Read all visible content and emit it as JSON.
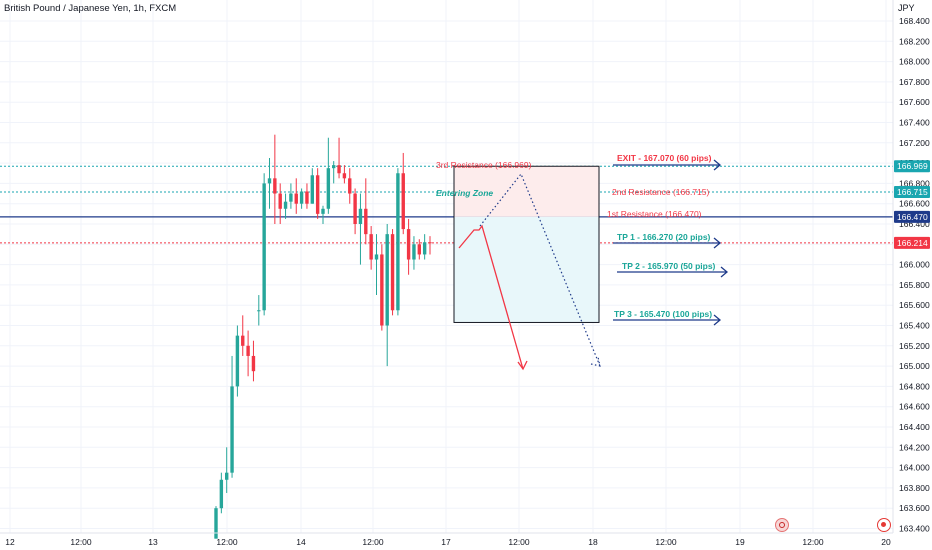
{
  "header": {
    "title": "British Pound / Japanese Yen, 1h, FXCM",
    "currency": "JPY"
  },
  "colors": {
    "up": "#26a69a",
    "down": "#f23645",
    "blue": "#1e3a8a",
    "cyan": "#1aa6b0",
    "red": "#f23645",
    "teal": "#1aa698",
    "grid": "#f0f3fa"
  },
  "icons": [
    "alert-icon",
    "record-icon"
  ],
  "chart_data": {
    "type": "candlestick",
    "title": "British Pound / Japanese Yen, 1h, FXCM",
    "ylim": [
      163.3,
      168.65
    ],
    "yticks": [
      "163.400",
      "163.600",
      "163.800",
      "164.000",
      "164.200",
      "164.400",
      "164.600",
      "164.800",
      "165.000",
      "165.200",
      "165.400",
      "165.600",
      "165.800",
      "166.000",
      "166.200",
      "166.400",
      "166.600",
      "166.800",
      "167.000",
      "167.200",
      "167.400",
      "167.600",
      "167.800",
      "168.000",
      "168.200",
      "168.400"
    ],
    "xticks": [
      "12",
      "12:00",
      "13",
      "12:00",
      "14",
      "12:00",
      "17",
      "12:00",
      "18",
      "12:00",
      "19",
      "12:00",
      "20"
    ],
    "candles": [
      [
        163.3,
        163.62,
        163.3,
        163.6
      ],
      [
        163.6,
        163.95,
        163.55,
        163.88
      ],
      [
        163.88,
        164.2,
        163.75,
        163.95
      ],
      [
        163.95,
        165.1,
        163.9,
        164.8
      ],
      [
        164.8,
        165.4,
        164.7,
        165.3
      ],
      [
        165.3,
        165.5,
        165.1,
        165.2
      ],
      [
        165.2,
        165.35,
        164.9,
        165.1
      ],
      [
        165.1,
        165.25,
        164.85,
        164.95
      ],
      [
        165.55,
        165.7,
        165.4,
        165.55
      ],
      [
        165.55,
        166.9,
        165.5,
        166.8
      ],
      [
        166.8,
        167.05,
        166.55,
        166.85
      ],
      [
        166.85,
        167.28,
        166.4,
        166.7
      ],
      [
        166.7,
        166.8,
        166.4,
        166.55
      ],
      [
        166.55,
        166.7,
        166.45,
        166.62
      ],
      [
        166.62,
        166.8,
        166.55,
        166.7
      ],
      [
        166.7,
        166.85,
        166.5,
        166.6
      ],
      [
        166.6,
        166.75,
        166.55,
        166.72
      ],
      [
        166.72,
        166.8,
        166.55,
        166.6
      ],
      [
        166.6,
        166.95,
        166.6,
        166.88
      ],
      [
        166.88,
        166.95,
        166.45,
        166.5
      ],
      [
        166.5,
        166.58,
        166.4,
        166.55
      ],
      [
        166.55,
        167.25,
        166.5,
        166.95
      ],
      [
        166.95,
        167.02,
        166.8,
        166.98
      ],
      [
        166.98,
        167.25,
        166.85,
        166.9
      ],
      [
        166.9,
        166.98,
        166.8,
        166.85
      ],
      [
        166.85,
        166.95,
        166.6,
        166.7
      ],
      [
        166.7,
        166.75,
        166.3,
        166.4
      ],
      [
        166.4,
        166.7,
        166.0,
        166.55
      ],
      [
        166.55,
        166.85,
        166.2,
        166.3
      ],
      [
        166.3,
        166.38,
        165.95,
        166.05
      ],
      [
        166.05,
        166.3,
        165.7,
        166.1
      ],
      [
        166.1,
        166.2,
        165.35,
        165.4
      ],
      [
        165.4,
        166.4,
        165.0,
        166.3
      ],
      [
        166.3,
        166.35,
        165.5,
        165.55
      ],
      [
        165.55,
        166.95,
        165.5,
        166.9
      ],
      [
        166.9,
        167.1,
        166.3,
        166.35
      ],
      [
        166.35,
        166.45,
        165.9,
        166.05
      ],
      [
        166.05,
        166.28,
        165.95,
        166.2
      ],
      [
        166.2,
        166.25,
        166.05,
        166.1
      ],
      [
        166.1,
        166.3,
        166.05,
        166.22
      ],
      [
        166.22,
        166.28,
        166.1,
        166.214
      ]
    ],
    "current_price": "166.214"
  },
  "levels": {
    "third_res": {
      "value": 166.969,
      "tag": "166.969",
      "label": "3rd Resistance (166.969)"
    },
    "second_res": {
      "value": 166.715,
      "tag": "166.715",
      "label": "2nd Resistance (166.715)"
    },
    "first_res": {
      "value": 166.47,
      "tag": "166.470",
      "label": "1st Resistance (166.470)"
    },
    "current": {
      "value": 166.214,
      "tag": "166.214"
    }
  },
  "annotations": {
    "entering_zone": "Entering Zone",
    "exit": {
      "label": "EXIT - 167.070 (60 pips)",
      "value": 167.07
    },
    "tp1": {
      "label": "TP 1 - 166.270 (20 pips)",
      "value": 166.27
    },
    "tp2": {
      "label": "TP 2 - 165.970 (50 pips)",
      "value": 165.97
    },
    "tp3": {
      "label": "TP 3 - 165.470 (100 pips)",
      "value": 165.47
    }
  }
}
